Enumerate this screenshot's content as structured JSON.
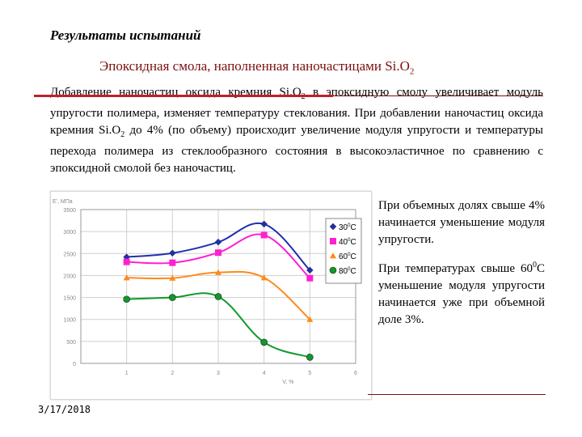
{
  "header": {
    "title": "Результаты испытаний"
  },
  "subtitle": {
    "text": "Эпоксидная смола, наполненная наночастицами Si.O",
    "sub": "2"
  },
  "intro": {
    "p1": "Добавление наночастиц оксида кремния Si.O",
    "p1_sub": "2",
    "p2": " в эпоксидную смолу увеличивает модуль упругости полимера, изменяет температуру стеклования. При добавлении наночастиц оксида кремния Si.O",
    "p2_sub": "2",
    "p3": " до 4% (по объему) происходит увеличение модуля упругости и температуры перехода полимера из стеклообразного состояния в высокоэластичное по сравнению с эпоксидной смолой без наночастиц."
  },
  "right_text": {
    "para1": "При объемных долях свыше 4% начинается уменьшение модуля упругости.",
    "para2_a": "При температурах свыше 60",
    "para2_sup": "0",
    "para2_b": "С уменьшение модуля упругости начинается уже при объемной доле 3%."
  },
  "footer": {
    "date": "3/17/2018"
  },
  "colors": {
    "accent": "#7a1010",
    "rule": "#c0202a"
  },
  "chart_data": {
    "type": "line",
    "ylabel": "E', МПа",
    "xlabel": "V, %",
    "xlim": [
      0,
      6
    ],
    "ylim": [
      0,
      3500
    ],
    "x_ticks": [
      "0",
      "1",
      "2",
      "3",
      "4",
      "5",
      "6"
    ],
    "y_ticks": [
      "0",
      "500",
      "1000",
      "1500",
      "2000",
      "2500",
      "3000",
      "3500"
    ],
    "grid": true,
    "legend_position": "right",
    "series": [
      {
        "name": "30",
        "unit": "C",
        "sup": "0",
        "color": "#1f2fb0",
        "marker": "diamond",
        "x": [
          1,
          2,
          3,
          4,
          5
        ],
        "y": [
          2420,
          2510,
          2760,
          3170,
          2120
        ]
      },
      {
        "name": "40",
        "unit": "C",
        "sup": "0",
        "color": "#ff1fd0",
        "marker": "square",
        "x": [
          1,
          2,
          3,
          4,
          5
        ],
        "y": [
          2310,
          2290,
          2520,
          2920,
          1940
        ]
      },
      {
        "name": "60",
        "unit": "C",
        "sup": "0",
        "color": "#ff8a1a",
        "marker": "triangle",
        "x": [
          1,
          2,
          3,
          4,
          5
        ],
        "y": [
          1950,
          1940,
          2070,
          1950,
          1000
        ]
      },
      {
        "name": "80",
        "unit": "C",
        "sup": "0",
        "color": "#0f9a2a",
        "marker": "circle",
        "x": [
          1,
          2,
          3,
          4,
          5
        ],
        "y": [
          1460,
          1500,
          1520,
          480,
          140
        ]
      }
    ]
  }
}
